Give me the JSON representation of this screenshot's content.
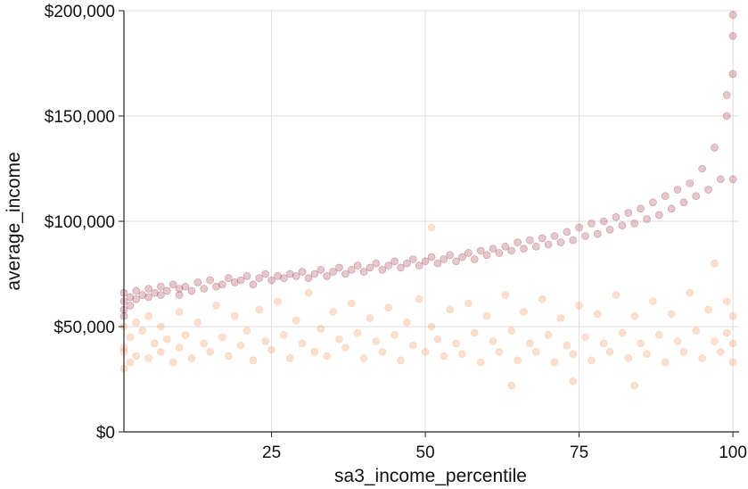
{
  "chart_data": {
    "type": "scatter",
    "xlabel": "sa3_income_percentile",
    "ylabel": "average_income",
    "xlim": [
      1,
      101
    ],
    "ylim": [
      0,
      200000
    ],
    "x_ticks": [
      25,
      50,
      75,
      100
    ],
    "x_tick_labels": [
      "25",
      "50",
      "75",
      "100"
    ],
    "y_ticks": [
      0,
      50000,
      100000,
      150000,
      200000
    ],
    "y_tick_labels": [
      "$0",
      "$50,000",
      "$100,000",
      "$150,000",
      "$200,000"
    ],
    "grid": true,
    "legend": "none",
    "colors": {
      "upper": "#9e3a4f",
      "lower": "#f4a06a"
    },
    "series": [
      {
        "color": "#9e3a4f",
        "points": [
          [
            1,
            62000
          ],
          [
            1,
            58000
          ],
          [
            1,
            66000
          ],
          [
            1,
            55000
          ],
          [
            2,
            64000
          ],
          [
            2,
            60000
          ],
          [
            3,
            67000
          ],
          [
            3,
            63000
          ],
          [
            4,
            65000
          ],
          [
            5,
            68000
          ],
          [
            5,
            64000
          ],
          [
            6,
            66000
          ],
          [
            7,
            69000
          ],
          [
            7,
            65000
          ],
          [
            8,
            67000
          ],
          [
            9,
            70000
          ],
          [
            10,
            68000
          ],
          [
            10,
            65000
          ],
          [
            11,
            69000
          ],
          [
            12,
            67000
          ],
          [
            13,
            71000
          ],
          [
            14,
            68000
          ],
          [
            15,
            72000
          ],
          [
            16,
            69000
          ],
          [
            17,
            70000
          ],
          [
            18,
            73000
          ],
          [
            19,
            71000
          ],
          [
            20,
            72000
          ],
          [
            21,
            74000
          ],
          [
            22,
            70000
          ],
          [
            23,
            73000
          ],
          [
            24,
            75000
          ],
          [
            25,
            72000
          ],
          [
            26,
            74000
          ],
          [
            27,
            73000
          ],
          [
            28,
            75000
          ],
          [
            29,
            74000
          ],
          [
            30,
            76000
          ],
          [
            31,
            73000
          ],
          [
            32,
            75000
          ],
          [
            33,
            77000
          ],
          [
            34,
            74000
          ],
          [
            35,
            76000
          ],
          [
            36,
            78000
          ],
          [
            37,
            75000
          ],
          [
            38,
            77000
          ],
          [
            39,
            79000
          ],
          [
            40,
            76000
          ],
          [
            41,
            78000
          ],
          [
            42,
            80000
          ],
          [
            43,
            77000
          ],
          [
            44,
            79000
          ],
          [
            45,
            81000
          ],
          [
            46,
            78000
          ],
          [
            47,
            80000
          ],
          [
            48,
            82000
          ],
          [
            49,
            79000
          ],
          [
            50,
            81000
          ],
          [
            51,
            83000
          ],
          [
            52,
            80000
          ],
          [
            53,
            82000
          ],
          [
            54,
            84000
          ],
          [
            55,
            81000
          ],
          [
            56,
            83000
          ],
          [
            57,
            85000
          ],
          [
            58,
            82000
          ],
          [
            59,
            86000
          ],
          [
            60,
            84000
          ],
          [
            61,
            87000
          ],
          [
            62,
            85000
          ],
          [
            63,
            88000
          ],
          [
            64,
            86000
          ],
          [
            65,
            90000
          ],
          [
            66,
            87000
          ],
          [
            67,
            91000
          ],
          [
            68,
            88000
          ],
          [
            69,
            92000
          ],
          [
            70,
            89000
          ],
          [
            71,
            93000
          ],
          [
            72,
            90000
          ],
          [
            73,
            95000
          ],
          [
            74,
            91000
          ],
          [
            75,
            97000
          ],
          [
            76,
            93000
          ],
          [
            77,
            99000
          ],
          [
            78,
            94000
          ],
          [
            79,
            100000
          ],
          [
            80,
            96000
          ],
          [
            81,
            102000
          ],
          [
            82,
            98000
          ],
          [
            83,
            104000
          ],
          [
            84,
            99000
          ],
          [
            85,
            106000
          ],
          [
            86,
            101000
          ],
          [
            87,
            109000
          ],
          [
            88,
            103000
          ],
          [
            89,
            112000
          ],
          [
            90,
            106000
          ],
          [
            91,
            115000
          ],
          [
            92,
            109000
          ],
          [
            93,
            118000
          ],
          [
            94,
            112000
          ],
          [
            95,
            125000
          ],
          [
            96,
            115000
          ],
          [
            97,
            135000
          ],
          [
            98,
            120000
          ],
          [
            99,
            150000
          ],
          [
            99,
            160000
          ],
          [
            100,
            170000
          ],
          [
            100,
            188000
          ],
          [
            100,
            198000
          ],
          [
            100,
            120000
          ]
        ]
      },
      {
        "color": "#f4a06a",
        "points": [
          [
            1,
            30000
          ],
          [
            1,
            40000
          ],
          [
            1,
            50000
          ],
          [
            1,
            38000
          ],
          [
            2,
            45000
          ],
          [
            2,
            33000
          ],
          [
            3,
            52000
          ],
          [
            3,
            36000
          ],
          [
            4,
            48000
          ],
          [
            5,
            35000
          ],
          [
            5,
            55000
          ],
          [
            6,
            42000
          ],
          [
            7,
            38000
          ],
          [
            7,
            50000
          ],
          [
            8,
            44000
          ],
          [
            9,
            33000
          ],
          [
            10,
            57000
          ],
          [
            10,
            40000
          ],
          [
            11,
            46000
          ],
          [
            12,
            35000
          ],
          [
            13,
            52000
          ],
          [
            14,
            42000
          ],
          [
            15,
            38000
          ],
          [
            16,
            60000
          ],
          [
            17,
            45000
          ],
          [
            18,
            36000
          ],
          [
            19,
            55000
          ],
          [
            20,
            41000
          ],
          [
            21,
            48000
          ],
          [
            22,
            34000
          ],
          [
            23,
            58000
          ],
          [
            24,
            43000
          ],
          [
            25,
            39000
          ],
          [
            26,
            62000
          ],
          [
            27,
            46000
          ],
          [
            28,
            35000
          ],
          [
            29,
            53000
          ],
          [
            30,
            42000
          ],
          [
            31,
            66000
          ],
          [
            32,
            38000
          ],
          [
            33,
            49000
          ],
          [
            34,
            36000
          ],
          [
            35,
            57000
          ],
          [
            36,
            44000
          ],
          [
            37,
            40000
          ],
          [
            38,
            61000
          ],
          [
            39,
            47000
          ],
          [
            40,
            35000
          ],
          [
            41,
            54000
          ],
          [
            42,
            43000
          ],
          [
            43,
            38000
          ],
          [
            44,
            59000
          ],
          [
            45,
            46000
          ],
          [
            46,
            34000
          ],
          [
            47,
            52000
          ],
          [
            48,
            41000
          ],
          [
            49,
            63000
          ],
          [
            50,
            38000
          ],
          [
            51,
            97000
          ],
          [
            51,
            50000
          ],
          [
            52,
            44000
          ],
          [
            53,
            36000
          ],
          [
            54,
            58000
          ],
          [
            55,
            42000
          ],
          [
            56,
            37000
          ],
          [
            57,
            61000
          ],
          [
            58,
            47000
          ],
          [
            59,
            33000
          ],
          [
            60,
            55000
          ],
          [
            61,
            43000
          ],
          [
            62,
            38000
          ],
          [
            63,
            65000
          ],
          [
            64,
            22000
          ],
          [
            64,
            48000
          ],
          [
            65,
            34000
          ],
          [
            66,
            57000
          ],
          [
            67,
            42000
          ],
          [
            68,
            38000
          ],
          [
            69,
            63000
          ],
          [
            70,
            46000
          ],
          [
            71,
            33000
          ],
          [
            72,
            54000
          ],
          [
            73,
            41000
          ],
          [
            74,
            24000
          ],
          [
            74,
            37000
          ],
          [
            75,
            60000
          ],
          [
            76,
            45000
          ],
          [
            77,
            34000
          ],
          [
            78,
            56000
          ],
          [
            79,
            42000
          ],
          [
            80,
            38000
          ],
          [
            81,
            65000
          ],
          [
            82,
            47000
          ],
          [
            83,
            35000
          ],
          [
            84,
            22000
          ],
          [
            84,
            55000
          ],
          [
            85,
            42000
          ],
          [
            86,
            37000
          ],
          [
            87,
            62000
          ],
          [
            88,
            46000
          ],
          [
            89,
            33000
          ],
          [
            90,
            56000
          ],
          [
            91,
            43000
          ],
          [
            92,
            38000
          ],
          [
            93,
            66000
          ],
          [
            94,
            48000
          ],
          [
            95,
            35000
          ],
          [
            96,
            58000
          ],
          [
            97,
            43000
          ],
          [
            97,
            80000
          ],
          [
            98,
            38000
          ],
          [
            99,
            62000
          ],
          [
            99,
            47000
          ],
          [
            100,
            33000
          ],
          [
            100,
            55000
          ],
          [
            100,
            42000
          ]
        ]
      }
    ]
  }
}
